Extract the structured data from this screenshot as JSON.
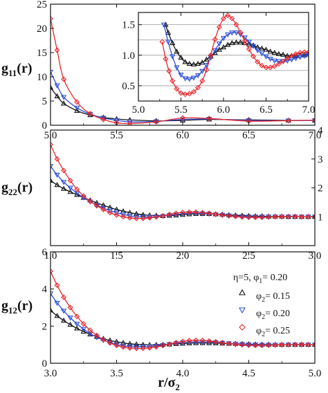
{
  "chart_data": [
    {
      "type": "line",
      "panel": "top",
      "ylabel": "g",
      "ylabel_sub": "11",
      "ylabel_suffix": "(r)",
      "xlim": [
        5.0,
        7.0
      ],
      "ylim": [
        0,
        25
      ],
      "xticks": [
        "5.0",
        "5.5",
        "6.0",
        "6.5",
        "7.0"
      ],
      "yticks": [
        "0",
        "5",
        "10",
        "15",
        "20",
        "25"
      ],
      "series": [
        {
          "color": "#111111",
          "marker": "triangle-up",
          "x": [
            5.0,
            5.05,
            5.1,
            5.2,
            5.3,
            5.4,
            5.5,
            5.6,
            5.8,
            6.0,
            6.2,
            6.5,
            6.8,
            7.0
          ],
          "y": [
            7.8,
            6.0,
            4.5,
            3.0,
            2.1,
            1.6,
            1.3,
            1.1,
            0.9,
            1.0,
            1.2,
            1.1,
            1.0,
            1.0
          ]
        },
        {
          "color": "#2b4fd8",
          "marker": "triangle-down",
          "x": [
            5.0,
            5.05,
            5.1,
            5.2,
            5.3,
            5.4,
            5.5,
            5.6,
            5.8,
            6.0,
            6.2,
            6.5,
            6.8,
            7.0
          ],
          "y": [
            11.0,
            8.2,
            5.8,
            3.6,
            2.3,
            1.5,
            1.0,
            0.7,
            0.8,
            1.2,
            1.3,
            1.0,
            0.95,
            1.0
          ]
        },
        {
          "color": "#e8262b",
          "marker": "diamond",
          "x": [
            5.0,
            5.05,
            5.1,
            5.2,
            5.3,
            5.4,
            5.5,
            5.6,
            5.8,
            6.0,
            6.2,
            6.5,
            6.8,
            7.0
          ],
          "y": [
            22.0,
            15.5,
            9.5,
            4.8,
            2.4,
            1.2,
            0.5,
            0.35,
            0.7,
            1.5,
            1.4,
            0.85,
            0.95,
            1.05
          ]
        }
      ]
    },
    {
      "type": "line",
      "panel": "inset",
      "xlim": [
        5.0,
        7.0
      ],
      "ylim": [
        0.25,
        1.7
      ],
      "xticks": [
        "5.0",
        "5.5",
        "6.0",
        "6.5",
        "7.0"
      ],
      "yticks": [
        "0.5",
        "1.0",
        "1.5"
      ],
      "grid": true,
      "series": [
        {
          "color": "#111111",
          "marker": "triangle-up",
          "x": [
            5.32,
            5.35,
            5.4,
            5.45,
            5.5,
            5.55,
            5.6,
            5.65,
            5.7,
            5.75,
            5.8,
            5.85,
            5.9,
            5.95,
            6.0,
            6.05,
            6.1,
            6.15,
            6.2,
            6.25,
            6.3,
            6.35,
            6.4,
            6.45,
            6.5,
            6.55,
            6.6,
            6.65,
            6.7,
            6.75,
            6.8,
            6.85,
            6.9,
            6.95,
            7.0
          ],
          "y": [
            1.5,
            1.37,
            1.2,
            1.06,
            0.96,
            0.89,
            0.86,
            0.85,
            0.86,
            0.88,
            0.93,
            0.98,
            1.04,
            1.09,
            1.13,
            1.17,
            1.2,
            1.21,
            1.21,
            1.2,
            1.18,
            1.16,
            1.13,
            1.11,
            1.09,
            1.06,
            1.04,
            1.02,
            1.01,
            0.99,
            0.99,
            0.99,
            1.0,
            1.0,
            1.02
          ]
        },
        {
          "color": "#2b4fd8",
          "marker": "triangle-down",
          "x": [
            5.3,
            5.35,
            5.4,
            5.45,
            5.5,
            5.55,
            5.6,
            5.65,
            5.7,
            5.75,
            5.8,
            5.85,
            5.9,
            5.95,
            6.0,
            6.05,
            6.1,
            6.15,
            6.2,
            6.25,
            6.3,
            6.35,
            6.4,
            6.45,
            6.5,
            6.55,
            6.6,
            6.65,
            6.7,
            6.75,
            6.8,
            6.85,
            6.9,
            6.95,
            7.0
          ],
          "y": [
            1.5,
            1.22,
            0.98,
            0.8,
            0.68,
            0.62,
            0.61,
            0.63,
            0.67,
            0.74,
            0.84,
            0.96,
            1.08,
            1.19,
            1.28,
            1.34,
            1.37,
            1.37,
            1.34,
            1.29,
            1.22,
            1.15,
            1.08,
            1.03,
            0.98,
            0.94,
            0.91,
            0.9,
            0.9,
            0.91,
            0.93,
            0.95,
            0.97,
            0.99,
            1.0
          ]
        },
        {
          "color": "#e8262b",
          "marker": "diamond",
          "x": [
            5.28,
            5.32,
            5.36,
            5.4,
            5.45,
            5.5,
            5.55,
            5.6,
            5.65,
            5.7,
            5.75,
            5.8,
            5.85,
            5.9,
            5.95,
            6.0,
            6.05,
            6.1,
            6.15,
            6.2,
            6.25,
            6.3,
            6.35,
            6.4,
            6.45,
            6.5,
            6.55,
            6.6,
            6.65,
            6.7,
            6.75,
            6.8,
            6.85,
            6.9,
            6.95,
            7.0
          ],
          "y": [
            1.22,
            0.94,
            0.74,
            0.58,
            0.45,
            0.38,
            0.36,
            0.37,
            0.4,
            0.47,
            0.58,
            0.76,
            1.0,
            1.26,
            1.46,
            1.6,
            1.65,
            1.6,
            1.5,
            1.37,
            1.23,
            1.1,
            0.98,
            0.89,
            0.83,
            0.8,
            0.8,
            0.82,
            0.86,
            0.9,
            0.95,
            0.99,
            1.02,
            1.04,
            1.05,
            1.05
          ]
        }
      ]
    },
    {
      "type": "line",
      "panel": "middle",
      "ylabel": "g",
      "ylabel_sub": "22",
      "ylabel_suffix": "(r)",
      "xlim": [
        1.0,
        3.0
      ],
      "ylim": [
        0,
        4
      ],
      "xticks": [
        "1.0",
        "1.5",
        "2.0",
        "2.5",
        "3.0"
      ],
      "yticks": [
        "1",
        "2",
        "3",
        "4"
      ],
      "series": [
        {
          "color": "#111111",
          "marker": "triangle-up",
          "x": [
            1.0,
            1.05,
            1.1,
            1.15,
            1.2,
            1.25,
            1.3,
            1.35,
            1.4,
            1.45,
            1.5,
            1.55,
            1.6,
            1.65,
            1.7,
            1.75,
            1.8,
            1.85,
            1.9,
            1.95,
            2.0,
            2.05,
            2.1,
            2.15,
            2.2,
            2.25,
            2.3,
            2.35,
            2.4,
            2.45,
            2.5,
            2.55,
            2.6,
            2.65,
            2.7,
            2.75,
            2.8,
            2.85,
            2.9,
            2.95,
            3.0
          ],
          "y": [
            2.25,
            2.1,
            1.97,
            1.86,
            1.76,
            1.66,
            1.57,
            1.48,
            1.4,
            1.32,
            1.25,
            1.19,
            1.14,
            1.1,
            1.07,
            1.05,
            1.04,
            1.03,
            1.04,
            1.05,
            1.07,
            1.09,
            1.1,
            1.1,
            1.1,
            1.09,
            1.08,
            1.06,
            1.05,
            1.04,
            1.03,
            1.02,
            1.02,
            1.01,
            1.01,
            1.01,
            1.0,
            1.0,
            1.0,
            1.0,
            1.0
          ]
        },
        {
          "color": "#2b4fd8",
          "marker": "triangle-down",
          "x": [
            1.0,
            1.05,
            1.1,
            1.15,
            1.2,
            1.25,
            1.3,
            1.35,
            1.4,
            1.45,
            1.5,
            1.55,
            1.6,
            1.65,
            1.7,
            1.75,
            1.8,
            1.85,
            1.9,
            1.95,
            2.0,
            2.05,
            2.1,
            2.15,
            2.2,
            2.25,
            2.3,
            2.35,
            2.4,
            2.45,
            2.5,
            2.55,
            2.6,
            2.65,
            2.7,
            2.75,
            2.8,
            2.85,
            2.9,
            2.95,
            3.0
          ],
          "y": [
            2.75,
            2.45,
            2.2,
            2.0,
            1.82,
            1.66,
            1.52,
            1.4,
            1.3,
            1.21,
            1.14,
            1.08,
            1.03,
            1.0,
            0.99,
            0.99,
            1.0,
            1.02,
            1.05,
            1.08,
            1.1,
            1.12,
            1.12,
            1.11,
            1.1,
            1.08,
            1.06,
            1.04,
            1.02,
            1.01,
            1.0,
            1.0,
            1.0,
            1.0,
            1.0,
            1.0,
            1.0,
            1.0,
            1.0,
            1.0,
            1.0
          ]
        },
        {
          "color": "#e8262b",
          "marker": "diamond",
          "x": [
            1.0,
            1.05,
            1.1,
            1.15,
            1.2,
            1.25,
            1.3,
            1.35,
            1.4,
            1.45,
            1.5,
            1.55,
            1.6,
            1.65,
            1.7,
            1.75,
            1.8,
            1.85,
            1.9,
            1.95,
            2.0,
            2.05,
            2.1,
            2.15,
            2.2,
            2.25,
            2.3,
            2.35,
            2.4,
            2.45,
            2.5,
            2.55,
            2.6,
            2.65,
            2.7,
            2.75,
            2.8,
            2.85,
            2.9,
            2.95,
            3.0
          ],
          "y": [
            3.5,
            3.0,
            2.6,
            2.25,
            1.95,
            1.72,
            1.53,
            1.38,
            1.25,
            1.14,
            1.06,
            1.0,
            0.96,
            0.94,
            0.94,
            0.96,
            0.99,
            1.03,
            1.08,
            1.12,
            1.15,
            1.16,
            1.16,
            1.14,
            1.12,
            1.09,
            1.06,
            1.03,
            1.01,
            0.99,
            0.98,
            0.98,
            0.98,
            0.99,
            1.0,
            1.0,
            1.01,
            1.01,
            1.0,
            1.0,
            1.0
          ]
        }
      ]
    },
    {
      "type": "line",
      "panel": "bottom",
      "ylabel": "g",
      "ylabel_sub": "12",
      "ylabel_suffix": "(r)",
      "xlabel": "r/σ",
      "xlabel_sub": "2",
      "xlim": [
        3.0,
        5.0
      ],
      "ylim": [
        0,
        6
      ],
      "xticks": [
        "3.0",
        "3.5",
        "4.0",
        "4.5",
        "5.0"
      ],
      "yticks": [
        "0",
        "2",
        "4",
        "6"
      ],
      "legend": {
        "placement": "right",
        "header": {
          "pre": "η=5, φ",
          "sub": "1",
          "post": "= 0.20"
        },
        "entries": [
          {
            "pre": "φ",
            "sub": "2",
            "post": "= 0.15"
          },
          {
            "pre": "φ",
            "sub": "2",
            "post": "= 0.20"
          },
          {
            "pre": "φ",
            "sub": "2",
            "post": "= 0.25"
          }
        ]
      },
      "series": [
        {
          "color": "#111111",
          "marker": "triangle-up",
          "x": [
            3.0,
            3.05,
            3.1,
            3.15,
            3.2,
            3.25,
            3.3,
            3.35,
            3.4,
            3.45,
            3.5,
            3.55,
            3.6,
            3.65,
            3.7,
            3.75,
            3.8,
            3.85,
            3.9,
            3.95,
            4.0,
            4.05,
            4.1,
            4.15,
            4.2,
            4.25,
            4.3,
            4.35,
            4.4,
            4.45,
            4.5,
            4.55,
            4.6,
            4.65,
            4.7,
            4.75,
            4.8,
            4.85,
            4.9,
            4.95,
            5.0
          ],
          "y": [
            2.85,
            2.55,
            2.3,
            2.08,
            1.88,
            1.71,
            1.56,
            1.43,
            1.32,
            1.23,
            1.16,
            1.1,
            1.05,
            1.02,
            1.0,
            0.99,
            0.99,
            1.0,
            1.02,
            1.04,
            1.06,
            1.08,
            1.09,
            1.09,
            1.09,
            1.08,
            1.07,
            1.06,
            1.05,
            1.04,
            1.03,
            1.02,
            1.01,
            1.01,
            1.0,
            1.0,
            1.0,
            1.0,
            1.0,
            1.0,
            1.0
          ]
        },
        {
          "color": "#2b4fd8",
          "marker": "triangle-down",
          "x": [
            3.0,
            3.05,
            3.1,
            3.15,
            3.2,
            3.25,
            3.3,
            3.35,
            3.4,
            3.45,
            3.5,
            3.55,
            3.6,
            3.65,
            3.7,
            3.75,
            3.8,
            3.85,
            3.9,
            3.95,
            4.0,
            4.05,
            4.1,
            4.15,
            4.2,
            4.25,
            4.3,
            4.35,
            4.4,
            4.45,
            4.5,
            4.55,
            4.6,
            4.65,
            4.7,
            4.75,
            4.8,
            4.85,
            4.9,
            4.95,
            5.0
          ],
          "y": [
            3.75,
            3.25,
            2.82,
            2.45,
            2.12,
            1.84,
            1.6,
            1.4,
            1.24,
            1.11,
            1.01,
            0.94,
            0.9,
            0.88,
            0.88,
            0.9,
            0.93,
            0.97,
            1.02,
            1.07,
            1.11,
            1.14,
            1.15,
            1.15,
            1.14,
            1.12,
            1.09,
            1.07,
            1.05,
            1.03,
            1.01,
            1.0,
            0.99,
            0.99,
            0.99,
            0.99,
            1.0,
            1.0,
            1.0,
            1.0,
            1.0
          ]
        },
        {
          "color": "#e8262b",
          "marker": "diamond",
          "x": [
            3.0,
            3.05,
            3.1,
            3.15,
            3.2,
            3.25,
            3.3,
            3.35,
            3.4,
            3.45,
            3.5,
            3.55,
            3.6,
            3.65,
            3.7,
            3.75,
            3.8,
            3.85,
            3.9,
            3.95,
            4.0,
            4.05,
            4.1,
            4.15,
            4.2,
            4.25,
            4.3,
            4.35,
            4.4,
            4.45,
            4.5,
            4.55,
            4.6,
            4.65,
            4.7,
            4.75,
            4.8,
            4.85,
            4.9,
            4.95,
            5.0
          ],
          "y": [
            4.95,
            4.2,
            3.55,
            3.0,
            2.52,
            2.12,
            1.78,
            1.5,
            1.27,
            1.09,
            0.96,
            0.87,
            0.82,
            0.8,
            0.8,
            0.83,
            0.88,
            0.95,
            1.03,
            1.11,
            1.18,
            1.22,
            1.24,
            1.23,
            1.2,
            1.16,
            1.11,
            1.06,
            1.02,
            0.99,
            0.97,
            0.96,
            0.96,
            0.97,
            0.98,
            0.99,
            1.0,
            1.01,
            1.01,
            1.0,
            1.0
          ]
        }
      ]
    }
  ]
}
